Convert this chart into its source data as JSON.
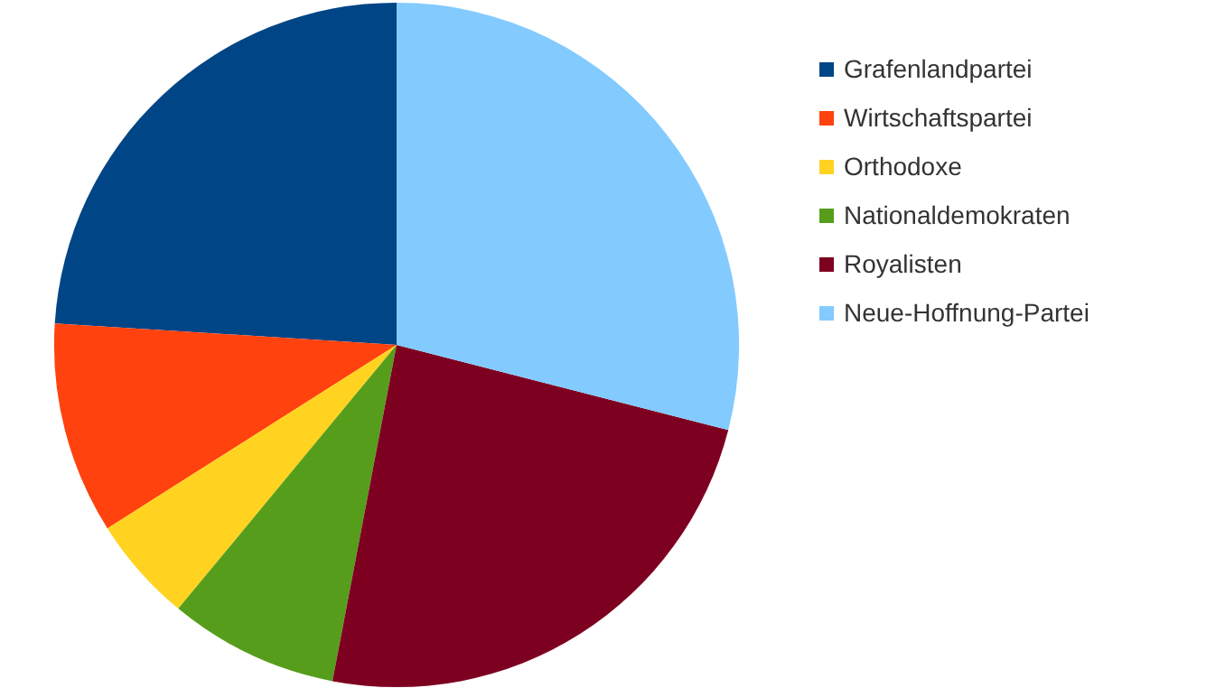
{
  "chart_data": {
    "type": "pie",
    "categories": [
      "Grafenlandpartei",
      "Wirtschaftspartei",
      "Orthodoxe",
      "Nationaldemokraten",
      "Royalisten",
      "Neue-Hoffnung-Partei"
    ],
    "values": [
      24,
      10,
      5,
      8,
      24,
      29
    ],
    "colors": [
      "#004586",
      "#ff420e",
      "#ffd320",
      "#579d1c",
      "#7e0021",
      "#83caff"
    ],
    "legend": "top right"
  }
}
